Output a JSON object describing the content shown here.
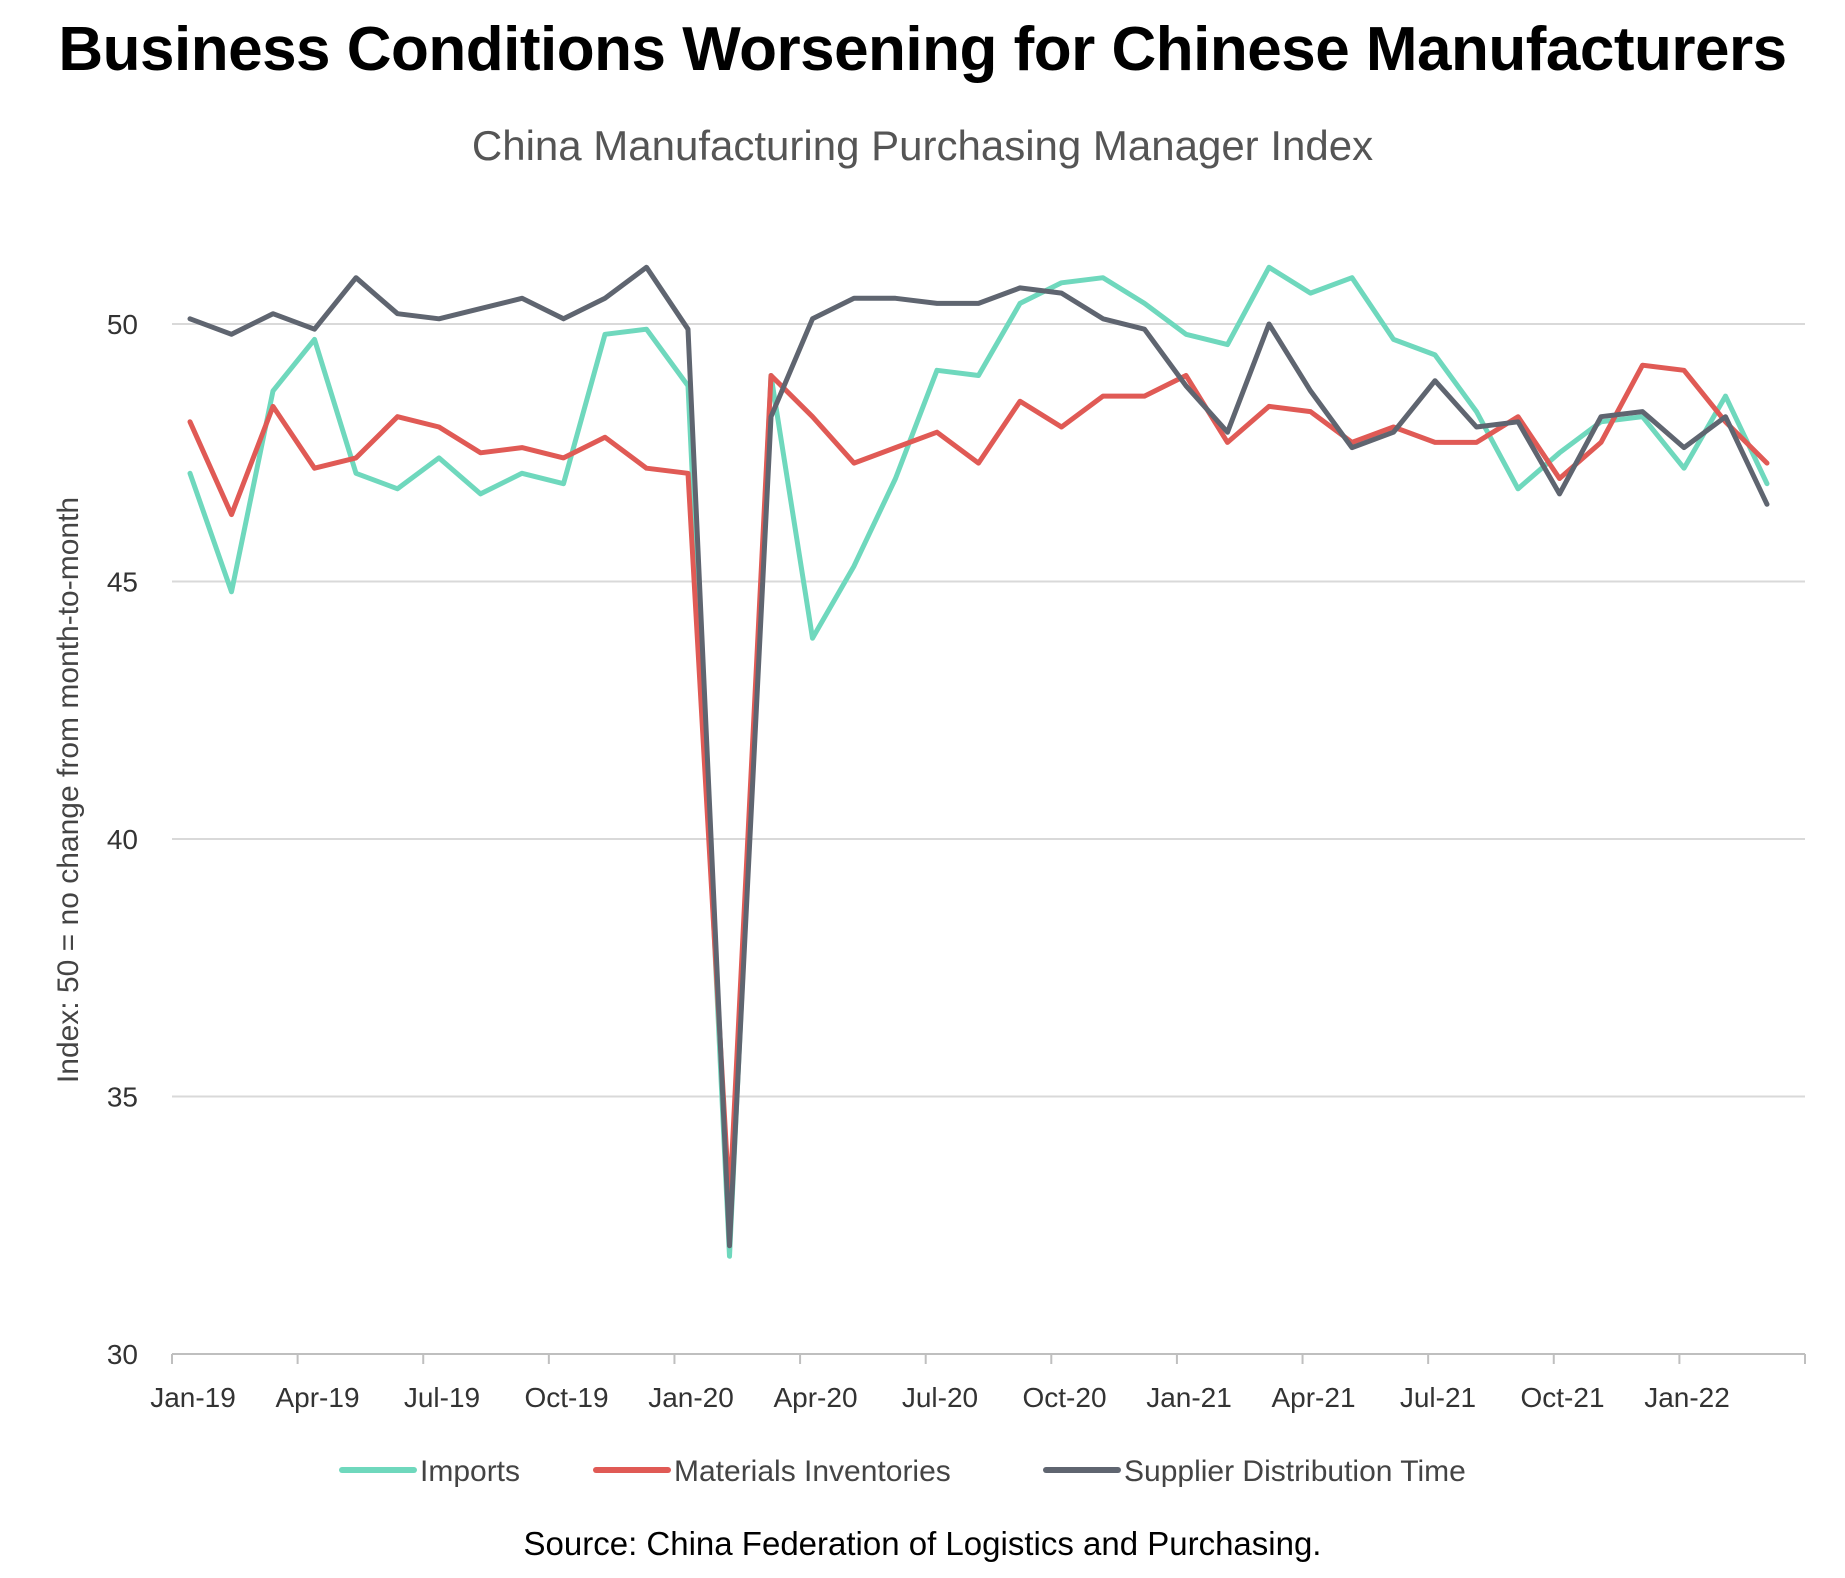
{
  "title": "Business Conditions Worsening for Chinese Manufacturers",
  "subtitle": "China Manufacturing Purchasing Manager Index",
  "source": "Source: China Federation of Logistics and Purchasing.",
  "colors": {
    "imports": "#6fd8bd",
    "materials_inventories": "#e05a55",
    "supplier_distribution_time": "#5f6570",
    "grid": "#d9d9d9",
    "axis": "#bfbfbf"
  },
  "chart_data": {
    "type": "line",
    "title": "China Manufacturing Purchasing Manager Index",
    "xlabel": "",
    "ylabel": "Index: 50 = no change from month-to-month",
    "ylim": [
      30,
      52
    ],
    "yticks": [
      30,
      35,
      40,
      45,
      50
    ],
    "grid": true,
    "legend_position": "bottom",
    "x": [
      "Jan-19",
      "Feb-19",
      "Mar-19",
      "Apr-19",
      "May-19",
      "Jun-19",
      "Jul-19",
      "Aug-19",
      "Sep-19",
      "Oct-19",
      "Nov-19",
      "Dec-19",
      "Jan-20",
      "Feb-20",
      "Mar-20",
      "Apr-20",
      "May-20",
      "Jun-20",
      "Jul-20",
      "Aug-20",
      "Sep-20",
      "Oct-20",
      "Nov-20",
      "Dec-20",
      "Jan-21",
      "Feb-21",
      "Mar-21",
      "Apr-21",
      "May-21",
      "Jun-21",
      "Jul-21",
      "Aug-21",
      "Sep-21",
      "Oct-21",
      "Nov-21",
      "Dec-21",
      "Jan-22",
      "Feb-22",
      "Mar-22"
    ],
    "xtick_labels": [
      "Jan-19",
      "Apr-19",
      "Jul-19",
      "Oct-19",
      "Jan-20",
      "Apr-20",
      "Jul-20",
      "Oct-20",
      "Jan-21",
      "Apr-21",
      "Jul-21",
      "Oct-21",
      "Jan-22"
    ],
    "series": [
      {
        "name": "Imports",
        "values": [
          47.1,
          44.8,
          48.7,
          49.7,
          47.1,
          46.8,
          47.4,
          46.7,
          47.1,
          46.9,
          49.8,
          49.9,
          48.8,
          31.9,
          49.0,
          43.9,
          45.3,
          47.0,
          49.1,
          49.0,
          50.4,
          50.8,
          50.9,
          50.4,
          49.8,
          49.6,
          51.1,
          50.6,
          50.9,
          49.7,
          49.4,
          48.3,
          46.8,
          47.5,
          48.1,
          48.2,
          47.2,
          48.6,
          46.9
        ]
      },
      {
        "name": "Materials Inventories",
        "values": [
          48.1,
          46.3,
          48.4,
          47.2,
          47.4,
          48.2,
          48.0,
          47.5,
          47.6,
          47.4,
          47.8,
          47.2,
          47.1,
          32.9,
          49.0,
          48.2,
          47.3,
          47.6,
          47.9,
          47.3,
          48.5,
          48.0,
          48.6,
          48.6,
          49.0,
          47.7,
          48.4,
          48.3,
          47.7,
          48.0,
          47.7,
          47.7,
          48.2,
          47.0,
          47.7,
          49.2,
          49.1,
          48.1,
          47.3
        ]
      },
      {
        "name": "Supplier Distribution Time",
        "values": [
          50.1,
          49.8,
          50.2,
          49.9,
          50.9,
          50.2,
          50.1,
          50.3,
          50.5,
          50.1,
          50.5,
          51.1,
          49.9,
          32.1,
          48.2,
          50.1,
          50.5,
          50.5,
          50.4,
          50.4,
          50.7,
          50.6,
          50.1,
          49.9,
          48.8,
          47.9,
          50.0,
          48.7,
          47.6,
          47.9,
          48.9,
          48.0,
          48.1,
          46.7,
          48.2,
          48.3,
          47.6,
          48.2,
          46.5
        ]
      }
    ]
  }
}
